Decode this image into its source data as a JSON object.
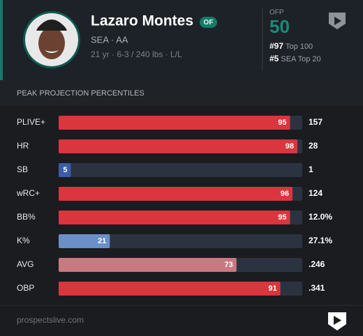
{
  "header": {
    "name": "Lazaro Montes",
    "position": "OF",
    "team_level": "SEA · AA",
    "bio": "21 yr · 6-3 / 240 lbs · L/L",
    "ofp_label": "OFP",
    "ofp_value": "50",
    "ranks": [
      {
        "rank": "#97",
        "label": "Top 100"
      },
      {
        "rank": "#5",
        "label": "SEA Top 20"
      }
    ]
  },
  "section_title": "PEAK PROJECTION PERCENTILES",
  "scale": [
    0,
    100
  ],
  "rows": [
    {
      "label": "PLIVE+",
      "percentile": 95,
      "value": "157",
      "color": "#d9363e"
    },
    {
      "label": "HR",
      "percentile": 98,
      "value": "28",
      "color": "#d9363e"
    },
    {
      "label": "SB",
      "percentile": 5,
      "value": "1",
      "color": "#3a5da6"
    },
    {
      "label": "wRC+",
      "percentile": 96,
      "value": "124",
      "color": "#d9363e"
    },
    {
      "label": "BB%",
      "percentile": 95,
      "value": "12.0%",
      "color": "#d9363e"
    },
    {
      "label": "K%",
      "percentile": 21,
      "value": "27.1%",
      "color": "#6b8fc6"
    },
    {
      "label": "AVG",
      "percentile": 73,
      "value": ".246",
      "color": "#c97a80"
    },
    {
      "label": "OBP",
      "percentile": 91,
      "value": ".341",
      "color": "#d9363e"
    }
  ],
  "footer": "prospectslive.com"
}
